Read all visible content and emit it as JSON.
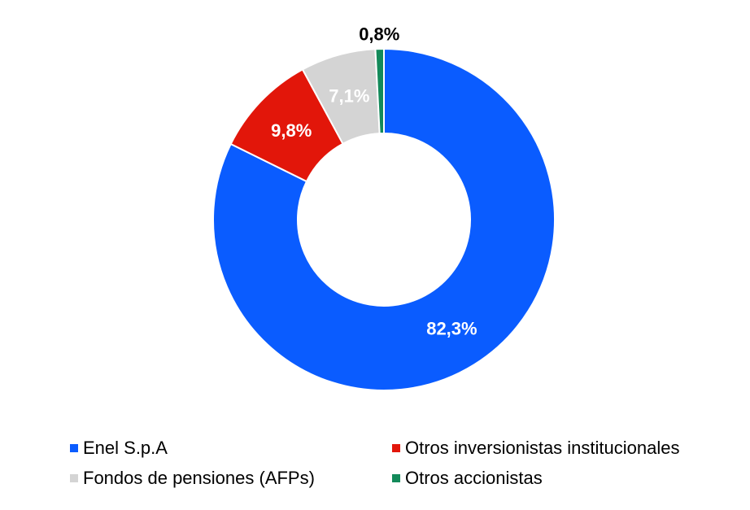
{
  "chart_data": {
    "type": "pie",
    "variant": "donut",
    "title": "",
    "legend_position": "bottom",
    "categories": [
      "Enel S.p.A",
      "Otros inversionistas institucionales",
      "Fondos de pensiones (AFPs)",
      "Otros accionistas"
    ],
    "values": [
      82.3,
      9.8,
      7.1,
      0.8
    ],
    "labels": [
      "82,3%",
      "9,8%",
      "7,1%",
      "0,8%"
    ],
    "colors": [
      "#0a5cff",
      "#e2160a",
      "#d4d4d4",
      "#138a5a"
    ],
    "label_colors": [
      "#ffffff",
      "#ffffff",
      "#ffffff",
      "#000000"
    ]
  }
}
